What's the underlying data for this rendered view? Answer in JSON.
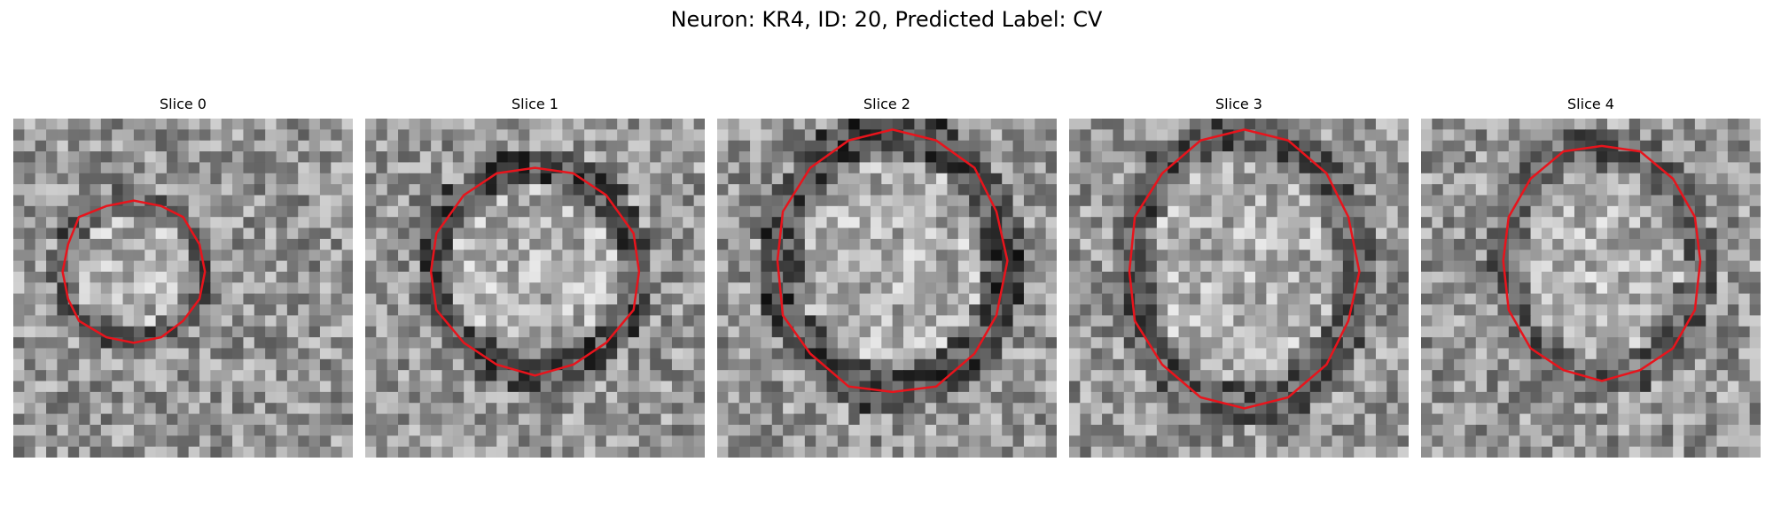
{
  "figure": {
    "title": "Neuron: KR4, ID: 20, Predicted Label: CV"
  },
  "panels": [
    {
      "title": "Slice 0"
    },
    {
      "title": "Slice 1"
    },
    {
      "title": "Slice 2"
    },
    {
      "title": "Slice 3"
    },
    {
      "title": "Slice 4"
    }
  ],
  "colors": {
    "contour": "#e8141c",
    "background": "#ffffff"
  },
  "image": {
    "description": "grayscale pixelated microscopy crop with red polygon contour",
    "grid": 31
  }
}
